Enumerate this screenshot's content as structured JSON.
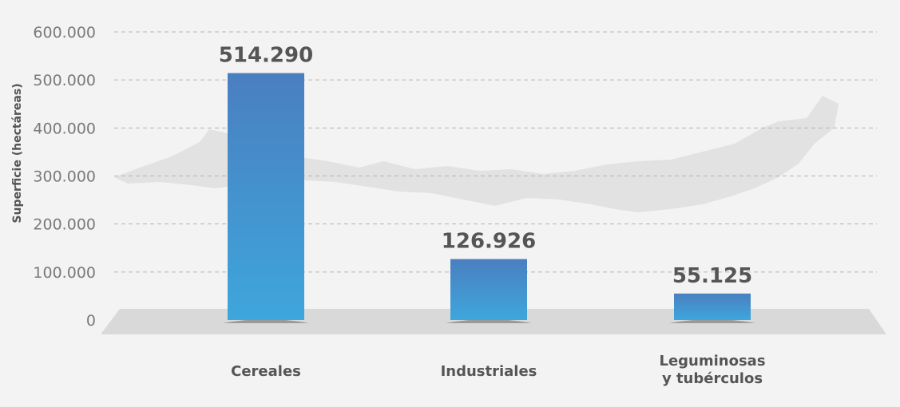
{
  "chart_data": {
    "type": "bar",
    "categories": [
      [
        "Cereales"
      ],
      [
        "Industriales"
      ],
      [
        "Leguminosas",
        "y tubérculos"
      ]
    ],
    "values": [
      514290,
      126926,
      55125
    ],
    "value_labels": [
      "514.290",
      "126.926",
      "55.125"
    ],
    "ylabel": "Superficie (hectáreas)",
    "ylim": [
      0,
      600000
    ],
    "yticks": [
      0,
      100000,
      200000,
      300000,
      400000,
      500000,
      600000
    ],
    "ytick_labels": [
      "0",
      "100.000",
      "200.000",
      "300.000",
      "400.000",
      "500.000",
      "600.000"
    ],
    "grid": true,
    "colors": {
      "bar_top": "#4a7fc0",
      "bar_bottom": "#3ea6dc",
      "grid": "#b5b5b5",
      "floor": "#d9d9d9",
      "map": "#e2e2e2"
    }
  }
}
